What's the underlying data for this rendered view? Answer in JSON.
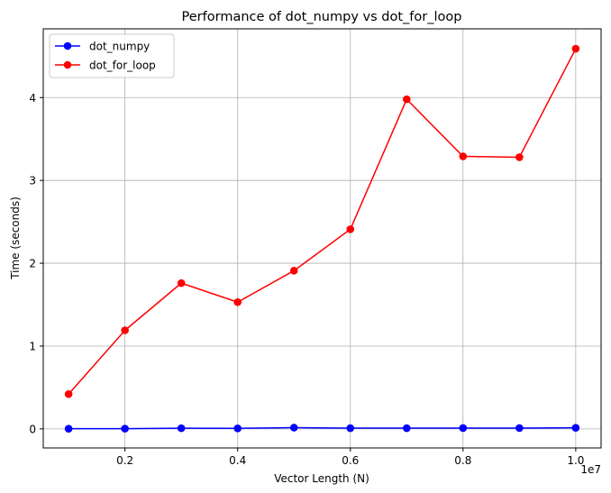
{
  "chart_data": {
    "type": "line",
    "title": "Performance of dot_numpy vs dot_for_loop",
    "xlabel": "Vector Length (N)",
    "ylabel": "Time (seconds)",
    "x_offset_label": "1e7",
    "x": [
      1000000,
      2000000,
      3000000,
      4000000,
      5000000,
      6000000,
      7000000,
      8000000,
      9000000,
      10000000
    ],
    "x_ticks": [
      {
        "value": 2000000,
        "label": "0.2"
      },
      {
        "value": 4000000,
        "label": "0.4"
      },
      {
        "value": 6000000,
        "label": "0.6"
      },
      {
        "value": 8000000,
        "label": "0.8"
      },
      {
        "value": 10000000,
        "label": "1.0"
      }
    ],
    "y_ticks": [
      {
        "value": 0,
        "label": "0"
      },
      {
        "value": 1,
        "label": "1"
      },
      {
        "value": 2,
        "label": "2"
      },
      {
        "value": 3,
        "label": "3"
      },
      {
        "value": 4,
        "label": "4"
      }
    ],
    "xlim": [
      550000,
      10450000
    ],
    "ylim": [
      -0.23,
      4.83
    ],
    "grid": true,
    "legend_position": "top-left",
    "series": [
      {
        "name": "dot_numpy",
        "color": "#0000ff",
        "marker": "circle",
        "values": [
          0.002,
          0.003,
          0.008,
          0.006,
          0.015,
          0.009,
          0.009,
          0.01,
          0.01,
          0.013
        ]
      },
      {
        "name": "dot_for_loop",
        "color": "#ff0000",
        "marker": "circle",
        "values": [
          0.42,
          1.19,
          1.76,
          1.53,
          1.91,
          2.41,
          3.98,
          3.29,
          3.28,
          4.59
        ]
      }
    ]
  }
}
